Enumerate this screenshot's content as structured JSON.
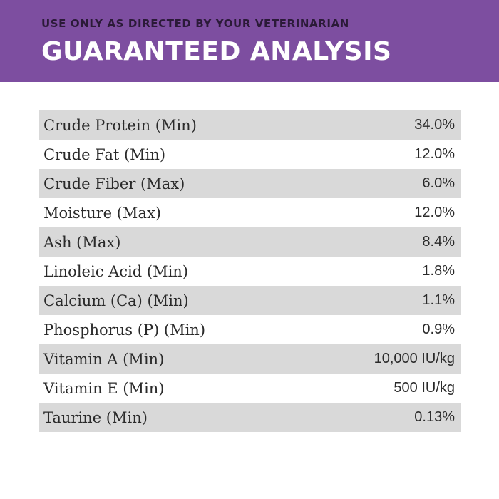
{
  "header": {
    "subtitle": "USE ONLY AS DIRECTED BY YOUR VETERINARIAN",
    "title": "GUARANTEED ANALYSIS",
    "background_color": "#7d4ea0"
  },
  "analysis": {
    "row_shade_color": "#d9d9d9",
    "rows": [
      {
        "label": "Crude Protein (Min)",
        "value": "34.0%"
      },
      {
        "label": "Crude Fat (Min)",
        "value": "12.0%"
      },
      {
        "label": "Crude Fiber (Max)",
        "value": "6.0%"
      },
      {
        "label": "Moisture (Max)",
        "value": "12.0%"
      },
      {
        "label": "Ash (Max)",
        "value": "8.4%"
      },
      {
        "label": "Linoleic Acid (Min)",
        "value": "1.8%"
      },
      {
        "label": "Calcium (Ca) (Min)",
        "value": "1.1%"
      },
      {
        "label": "Phosphorus (P) (Min)",
        "value": "0.9%"
      },
      {
        "label": "Vitamin A (Min)",
        "value": "10,000 IU/kg"
      },
      {
        "label": "Vitamin E (Min)",
        "value": "500 IU/kg"
      },
      {
        "label": "Taurine (Min)",
        "value": "0.13%"
      }
    ]
  }
}
